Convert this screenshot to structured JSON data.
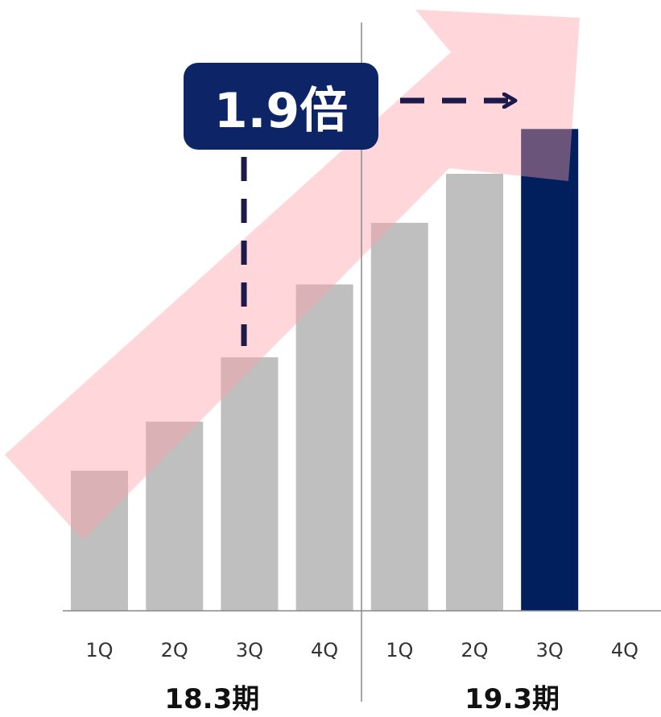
{
  "colors": {
    "bar_default": "#bfbfbf",
    "bar_highlight": "#001f5c",
    "arrow_fill": "#ff9ea5",
    "callout_bg": "#0d2566",
    "callout_text": "#ffffff",
    "dash_line": "#1c1a4a",
    "axis": "#888888"
  },
  "callout": {
    "label": "1.9倍"
  },
  "chart_data": {
    "type": "bar",
    "categories": [
      "1Q",
      "2Q",
      "3Q",
      "4Q",
      "1Q",
      "2Q",
      "3Q",
      "4Q"
    ],
    "groups": [
      {
        "label": "18.3期",
        "categories": [
          "1Q",
          "2Q",
          "3Q",
          "4Q"
        ]
      },
      {
        "label": "19.3期",
        "categories": [
          "1Q",
          "2Q",
          "3Q",
          "4Q"
        ]
      }
    ],
    "values": [
      1.0,
      1.35,
      1.81,
      2.33,
      2.77,
      3.12,
      3.44,
      null
    ],
    "highlight_index": 6,
    "ylim": [
      0,
      4.2
    ],
    "grid": false,
    "legend": "none",
    "annotation": "1.9倍"
  }
}
